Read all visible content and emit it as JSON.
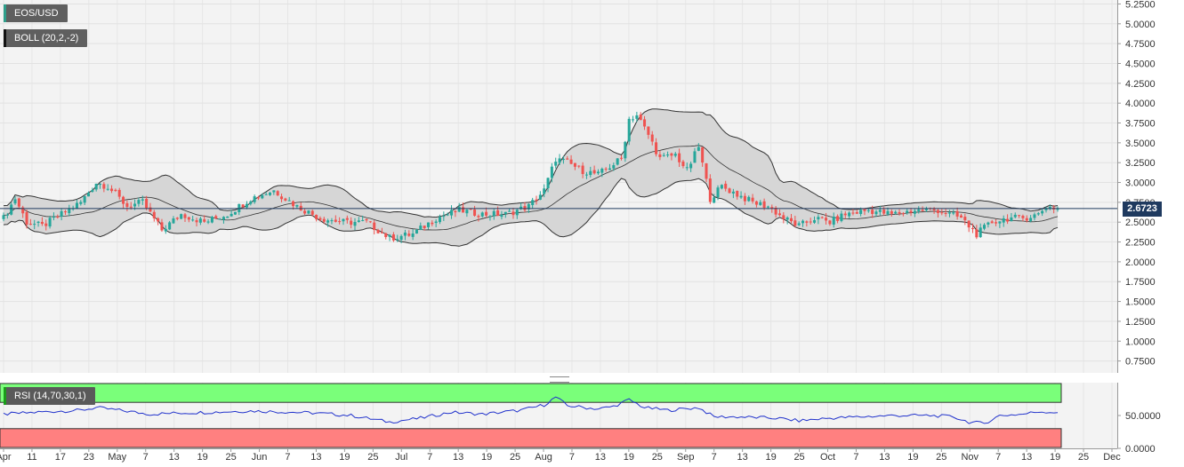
{
  "header": {
    "pair_label": "EOS/USD",
    "boll_label": "BOLL (20,2,-2)",
    "rsi_label": "RSI (14,70,30,1)",
    "current_price": "2.6723"
  },
  "colors": {
    "bull": "#26a69a",
    "bear": "#ef5350",
    "band_fill": "#d4d4d4",
    "band_line": "#333333",
    "price_line": "#1f3a5f",
    "rsi_line": "#2233cc",
    "rsi_overbought": "#7aff7a",
    "rsi_oversold": "#ff8080"
  },
  "chart_data": {
    "type": "candlestick",
    "price_axis": {
      "ylim": [
        0.6,
        5.3
      ],
      "ticks": [
        "5.2500",
        "5.0000",
        "4.7500",
        "4.5000",
        "4.2500",
        "4.0000",
        "3.7500",
        "3.5000",
        "3.2500",
        "3.0000",
        "2.7500",
        "2.5000",
        "2.2500",
        "2.0000",
        "1.7500",
        "1.5000",
        "1.2500",
        "1.0000",
        "0.7500"
      ]
    },
    "rsi_axis": {
      "ylim": [
        0,
        100
      ],
      "ticks": [
        "50.0000",
        "0.0000"
      ],
      "overbought": 70,
      "oversold": 30
    },
    "x_axis": {
      "ticks": [
        "Apr",
        "11",
        "17",
        "23",
        "May",
        "7",
        "13",
        "19",
        "25",
        "Jun",
        "7",
        "13",
        "19",
        "25",
        "Jul",
        "7",
        "13",
        "19",
        "25",
        "Aug",
        "7",
        "13",
        "19",
        "25",
        "Sep",
        "7",
        "13",
        "19",
        "25",
        "Oct",
        "7",
        "13",
        "19",
        "25",
        "Nov",
        "7",
        "13",
        "19",
        "25",
        "Dec"
      ]
    },
    "close_keyframes": [
      [
        0,
        2.55
      ],
      [
        3,
        2.8
      ],
      [
        6,
        2.5
      ],
      [
        10,
        2.45
      ],
      [
        15,
        2.6
      ],
      [
        20,
        2.75
      ],
      [
        24,
        3.0
      ],
      [
        27,
        2.95
      ],
      [
        32,
        2.7
      ],
      [
        36,
        2.75
      ],
      [
        41,
        2.4
      ],
      [
        46,
        2.6
      ],
      [
        52,
        2.5
      ],
      [
        58,
        2.6
      ],
      [
        64,
        2.8
      ],
      [
        70,
        2.9
      ],
      [
        76,
        2.7
      ],
      [
        82,
        2.55
      ],
      [
        88,
        2.5
      ],
      [
        94,
        2.5
      ],
      [
        100,
        2.3
      ],
      [
        106,
        2.35
      ],
      [
        112,
        2.55
      ],
      [
        118,
        2.65
      ],
      [
        124,
        2.6
      ],
      [
        130,
        2.6
      ],
      [
        136,
        2.7
      ],
      [
        140,
        2.9
      ],
      [
        143,
        3.3
      ],
      [
        146,
        3.25
      ],
      [
        150,
        3.15
      ],
      [
        154,
        3.1
      ],
      [
        157,
        3.2
      ],
      [
        160,
        3.3
      ],
      [
        162,
        3.8
      ],
      [
        164,
        3.85
      ],
      [
        167,
        3.6
      ],
      [
        170,
        3.3
      ],
      [
        174,
        3.35
      ],
      [
        177,
        3.15
      ],
      [
        180,
        3.45
      ],
      [
        183,
        2.8
      ],
      [
        186,
        2.95
      ],
      [
        190,
        2.85
      ],
      [
        194,
        2.75
      ],
      [
        198,
        2.7
      ],
      [
        202,
        2.55
      ],
      [
        206,
        2.45
      ],
      [
        210,
        2.55
      ],
      [
        214,
        2.5
      ],
      [
        218,
        2.6
      ],
      [
        224,
        2.65
      ],
      [
        230,
        2.6
      ],
      [
        236,
        2.65
      ],
      [
        242,
        2.65
      ],
      [
        248,
        2.55
      ],
      [
        252,
        2.35
      ],
      [
        256,
        2.5
      ],
      [
        260,
        2.55
      ],
      [
        264,
        2.55
      ],
      [
        268,
        2.6
      ],
      [
        270,
        2.7
      ],
      [
        273,
        2.67
      ]
    ],
    "rsi_keyframes": [
      [
        0,
        52
      ],
      [
        6,
        54
      ],
      [
        12,
        56
      ],
      [
        20,
        58
      ],
      [
        24,
        62
      ],
      [
        30,
        58
      ],
      [
        38,
        52
      ],
      [
        46,
        54
      ],
      [
        54,
        55
      ],
      [
        64,
        57
      ],
      [
        70,
        56
      ],
      [
        80,
        54
      ],
      [
        90,
        50
      ],
      [
        100,
        40
      ],
      [
        108,
        46
      ],
      [
        116,
        55
      ],
      [
        124,
        52
      ],
      [
        134,
        58
      ],
      [
        140,
        66
      ],
      [
        143,
        78
      ],
      [
        146,
        65
      ],
      [
        154,
        60
      ],
      [
        158,
        64
      ],
      [
        162,
        74
      ],
      [
        166,
        62
      ],
      [
        172,
        58
      ],
      [
        180,
        62
      ],
      [
        184,
        48
      ],
      [
        190,
        48
      ],
      [
        200,
        46
      ],
      [
        206,
        42
      ],
      [
        214,
        46
      ],
      [
        222,
        48
      ],
      [
        230,
        50
      ],
      [
        240,
        50
      ],
      [
        246,
        48
      ],
      [
        250,
        40
      ],
      [
        254,
        38
      ],
      [
        258,
        50
      ],
      [
        264,
        52
      ],
      [
        268,
        56
      ],
      [
        272,
        55
      ]
    ],
    "num_candles": 274
  }
}
